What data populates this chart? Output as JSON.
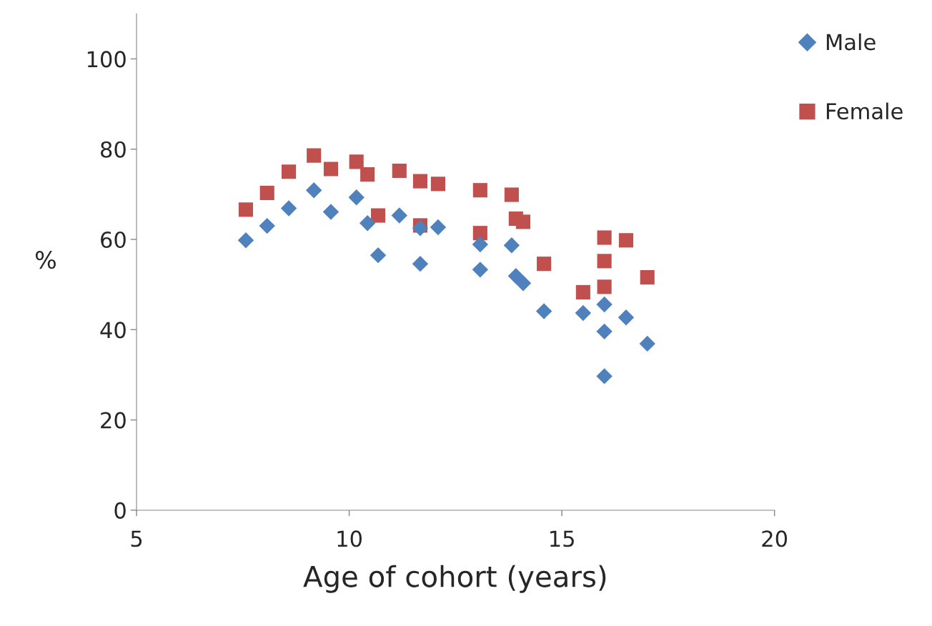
{
  "chart_data": {
    "type": "scatter",
    "xlabel": "Age of cohort (years)",
    "ylabel": "%",
    "xlim": [
      5,
      20
    ],
    "xticks": [
      5,
      10,
      15,
      20
    ],
    "ylim": [
      0,
      110
    ],
    "yticks": [
      0,
      20,
      40,
      60,
      80,
      100
    ],
    "grid": false,
    "legend": "top right",
    "series": [
      {
        "name": "Male",
        "color": "#4f81bd",
        "marker": "diamond",
        "x": [
          7.57,
          8.07,
          8.58,
          9.17,
          9.57,
          10.17,
          10.43,
          10.68,
          11.18,
          11.67,
          11.67,
          12.09,
          13.08,
          13.08,
          13.82,
          13.92,
          14.09,
          14.58,
          15.5,
          16.0,
          16.0,
          16.0,
          16.51,
          17.01
        ],
        "values": [
          59.8,
          63.0,
          66.9,
          70.9,
          66.1,
          69.3,
          63.6,
          56.5,
          65.3,
          54.6,
          62.5,
          62.7,
          53.3,
          58.9,
          58.7,
          51.9,
          50.3,
          44.1,
          43.7,
          45.6,
          39.6,
          29.7,
          42.7,
          36.9
        ]
      },
      {
        "name": "Female",
        "color": "#c0504d",
        "marker": "square",
        "x": [
          7.57,
          8.07,
          8.58,
          9.17,
          9.57,
          10.17,
          10.43,
          10.68,
          11.18,
          11.67,
          11.67,
          12.09,
          13.08,
          13.08,
          13.82,
          13.92,
          14.09,
          14.58,
          15.5,
          16.0,
          16.0,
          16.0,
          16.51,
          17.01
        ],
        "values": [
          66.6,
          70.3,
          75.0,
          78.6,
          75.6,
          77.2,
          74.4,
          65.3,
          75.2,
          72.9,
          63.1,
          72.3,
          70.9,
          61.4,
          69.9,
          64.6,
          63.9,
          54.6,
          48.3,
          60.4,
          55.2,
          49.5,
          59.8,
          51.6
        ]
      }
    ]
  }
}
